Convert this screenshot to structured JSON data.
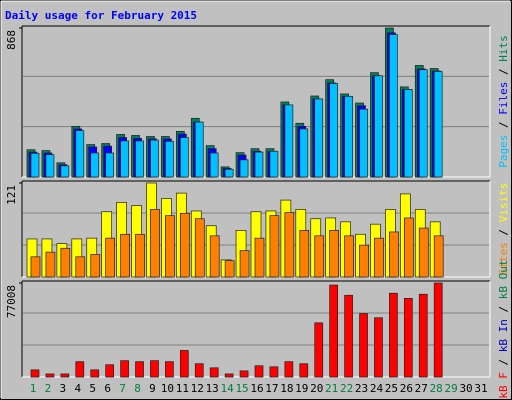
{
  "title": "Daily usage for February 2015",
  "separator": " / ",
  "chart_data": [
    {
      "type": "bar",
      "ylim": [
        0,
        868
      ],
      "yticks": [
        868
      ],
      "series": [
        {
          "name": "Hits",
          "color": "#00805c",
          "values": [
            159,
            154,
            83,
            295,
            189,
            195,
            248,
            242,
            236,
            236,
            266,
            342,
            183,
            59,
            142,
            165,
            165,
            437,
            313,
            472,
            567,
            484,
            431,
            608,
            868,
            525,
            650,
            632,
            null,
            null,
            null
          ]
        },
        {
          "name": "Files",
          "color": "#0000ff",
          "values": [
            145,
            140,
            72,
            280,
            175,
            180,
            230,
            225,
            222,
            222,
            250,
            320,
            165,
            50,
            128,
            150,
            150,
            420,
            295,
            455,
            548,
            470,
            415,
            590,
            840,
            510,
            630,
            618,
            null,
            null,
            null
          ]
        },
        {
          "name": "Pages",
          "color": "#00c0ff",
          "values": [
            138,
            130,
            65,
            270,
            140,
            140,
            210,
            210,
            215,
            208,
            230,
            320,
            140,
            45,
            100,
            145,
            150,
            420,
            280,
            455,
            545,
            470,
            395,
            590,
            830,
            510,
            625,
            615,
            null,
            null,
            null
          ]
        }
      ]
    },
    {
      "type": "bar",
      "ylim": [
        0,
        121
      ],
      "yticks": [
        121
      ],
      "series": [
        {
          "name": "Visits",
          "color": "#ffff00",
          "values": [
            49,
            49,
            43,
            49,
            50,
            84,
            96,
            92,
            121,
            101,
            108,
            85,
            66,
            22,
            60,
            84,
            85,
            99,
            87,
            75,
            76,
            71,
            55,
            68,
            87,
            107,
            87,
            71,
            null,
            null,
            null
          ]
        },
        {
          "name": "Sites",
          "color": "#ff8000",
          "values": [
            26,
            32,
            37,
            26,
            29,
            50,
            55,
            55,
            87,
            79,
            82,
            75,
            53,
            21,
            34,
            50,
            79,
            83,
            60,
            53,
            60,
            53,
            41,
            50,
            58,
            76,
            63,
            53,
            null,
            null,
            null
          ]
        }
      ]
    },
    {
      "type": "bar",
      "ylim": [
        0,
        77008
      ],
      "yticks": [
        77008
      ],
      "categories": [
        "1",
        "2",
        "3",
        "4",
        "5",
        "6",
        "7",
        "8",
        "9",
        "10",
        "11",
        "12",
        "13",
        "14",
        "15",
        "16",
        "17",
        "18",
        "19",
        "20",
        "21",
        "22",
        "23",
        "24",
        "25",
        "26",
        "27",
        "28",
        "29",
        "30",
        "31"
      ],
      "category_colors": [
        "#008040",
        "#008040",
        "#000000",
        "#000000",
        "#000000",
        "#000000",
        "#008040",
        "#008040",
        "#000000",
        "#000000",
        "#000000",
        "#000000",
        "#000000",
        "#008040",
        "#008040",
        "#000000",
        "#000000",
        "#000000",
        "#000000",
        "#000000",
        "#008040",
        "#008040",
        "#000000",
        "#000000",
        "#000000",
        "#000000",
        "#000000",
        "#008040",
        "#008040",
        "#000000",
        "#000000"
      ],
      "series": [
        {
          "name": "kB Out",
          "color": "#008040",
          "values": [
            null,
            null,
            null,
            null,
            null,
            null,
            null,
            null,
            null,
            null,
            null,
            null,
            null,
            null,
            null,
            null,
            null,
            null,
            null,
            null,
            null,
            null,
            null,
            null,
            null,
            null,
            null,
            null,
            null,
            null,
            null
          ]
        },
        {
          "name": "kB In",
          "color": "#0000c0",
          "values": [
            null,
            null,
            null,
            null,
            null,
            null,
            null,
            null,
            null,
            null,
            null,
            null,
            null,
            null,
            null,
            null,
            null,
            null,
            null,
            null,
            null,
            null,
            null,
            null,
            null,
            null,
            null,
            null,
            null,
            null,
            null
          ]
        },
        {
          "name": "kB F",
          "color": "#ff0000",
          "values": [
            5860,
            2510,
            2510,
            12560,
            5860,
            10040,
            13390,
            12560,
            13390,
            12560,
            21760,
            10880,
            7530,
            2510,
            5020,
            9210,
            8370,
            12560,
            10880,
            44360,
            75330,
            66960,
            51900,
            48550,
            68630,
            64450,
            67800,
            77008,
            null,
            null,
            null
          ]
        }
      ]
    }
  ]
}
